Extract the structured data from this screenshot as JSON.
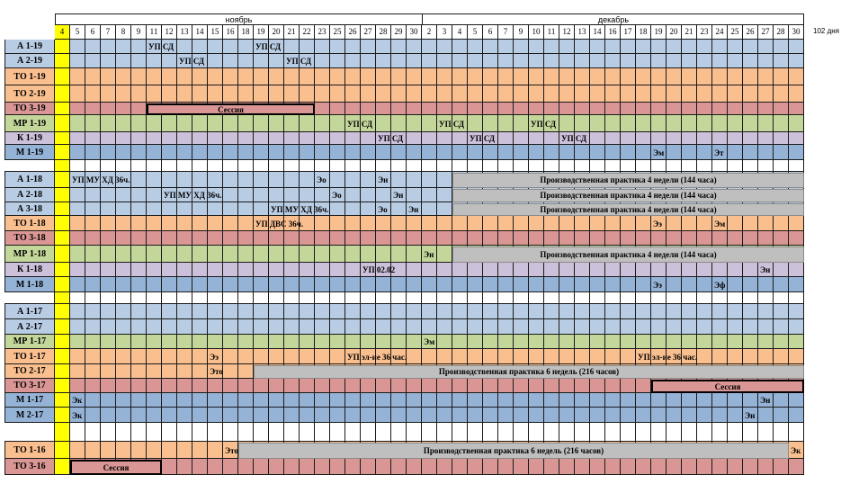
{
  "header": {
    "months": [
      {
        "name": "ноябрь"
      },
      {
        "name": "декабрь"
      }
    ],
    "days": [
      "4",
      "5",
      "6",
      "7",
      "8",
      "9",
      "11",
      "12",
      "13",
      "14",
      "15",
      "16",
      "18",
      "19",
      "20",
      "21",
      "22",
      "23",
      "25",
      "26",
      "27",
      "28",
      "29",
      "30",
      "2",
      "3",
      "4",
      "5",
      "6",
      "7",
      "9",
      "10",
      "11",
      "12",
      "13",
      "14",
      "16",
      "17",
      "18",
      "19",
      "20",
      "21",
      "23",
      "24",
      "25",
      "26",
      "27",
      "28",
      "30"
    ],
    "highlight_day_color": "#ffff00",
    "total_label": "102 дня"
  },
  "colors": {
    "blue_light": "#b8cce4",
    "orange": "#fabf8f",
    "red": "#da9694",
    "green": "#c4d79b",
    "purple": "#ccc0da",
    "blue_medium": "#95b3d7",
    "white": "#ffffff",
    "yellow": "#ffff00",
    "gray": "#bfbfbf"
  },
  "rows": [
    {
      "group": "А 1-19",
      "color": "blue_light"
    },
    {
      "group": "А 2-19",
      "color": "blue_light"
    },
    {
      "group": "ТО 1-19",
      "color": "orange"
    },
    {
      "group": "ТО 2-19",
      "color": "orange"
    },
    {
      "group": "ТО 3-19",
      "color": "red"
    },
    {
      "group": "МР 1-19",
      "color": "green"
    },
    {
      "group": "К 1-19",
      "color": "purple"
    },
    {
      "group": "М 1-19",
      "color": "blue_medium"
    },
    {
      "group": "",
      "color": "white"
    },
    {
      "group": "А 1-18",
      "color": "blue_light"
    },
    {
      "group": "А 2-18",
      "color": "blue_light"
    },
    {
      "group": "А 3-18",
      "color": "blue_light"
    },
    {
      "group": "ТО 1-18",
      "color": "orange"
    },
    {
      "group": "ТО 3-18",
      "color": "red"
    },
    {
      "group": "МР 1-18",
      "color": "green"
    },
    {
      "group": "К 1-18",
      "color": "purple"
    },
    {
      "group": "М 1-18",
      "color": "blue_medium"
    },
    {
      "group": "",
      "color": "white"
    },
    {
      "group": "А 1-17",
      "color": "blue_light"
    },
    {
      "group": "А 2-17",
      "color": "blue_light"
    },
    {
      "group": "МР 1-17",
      "color": "green"
    },
    {
      "group": "ТО 1-17",
      "color": "orange"
    },
    {
      "group": "ТО 2-17",
      "color": "orange"
    },
    {
      "group": "ТО 3-17",
      "color": "red"
    },
    {
      "group": "М 1-17",
      "color": "blue_medium"
    },
    {
      "group": "М 2-17",
      "color": "blue_medium"
    },
    {
      "group": "",
      "color": "white"
    },
    {
      "group": "ТО 1-16",
      "color": "orange"
    },
    {
      "group": "ТО 3-16",
      "color": "red"
    }
  ],
  "labels": [
    {
      "row": 0,
      "col": 6,
      "text": "УП СД"
    },
    {
      "row": 0,
      "col": 13,
      "text": "УП СД"
    },
    {
      "row": 1,
      "col": 8,
      "text": "УП СД"
    },
    {
      "row": 1,
      "col": 15,
      "text": "УП СД"
    },
    {
      "row": 5,
      "col": 19,
      "text": "УП СД"
    },
    {
      "row": 5,
      "col": 25,
      "text": "УП СД"
    },
    {
      "row": 5,
      "col": 31,
      "text": "УП СД"
    },
    {
      "row": 6,
      "col": 21,
      "text": "УП СД"
    },
    {
      "row": 6,
      "col": 27,
      "text": "УП СД"
    },
    {
      "row": 6,
      "col": 33,
      "text": "УП СД"
    },
    {
      "row": 7,
      "col": 39,
      "text": "Эм"
    },
    {
      "row": 7,
      "col": 43,
      "text": "Эт"
    },
    {
      "row": 9,
      "col": 1,
      "text": "УП МУ ХД 36ч."
    },
    {
      "row": 9,
      "col": 17,
      "text": "Эо"
    },
    {
      "row": 9,
      "col": 21,
      "text": "Эн"
    },
    {
      "row": 10,
      "col": 7,
      "text": "УП МУ ХД 36ч."
    },
    {
      "row": 10,
      "col": 18,
      "text": "Эо"
    },
    {
      "row": 10,
      "col": 22,
      "text": "Эн"
    },
    {
      "row": 11,
      "col": 14,
      "text": "УП МУ ХД 36ч."
    },
    {
      "row": 11,
      "col": 21,
      "text": "Эо"
    },
    {
      "row": 11,
      "col": 23,
      "text": "Эн"
    },
    {
      "row": 12,
      "col": 13,
      "text": "УП ДВС 36ч."
    },
    {
      "row": 12,
      "col": 39,
      "text": "Ээ"
    },
    {
      "row": 12,
      "col": 43,
      "text": "Эм"
    },
    {
      "row": 14,
      "col": 24,
      "text": "Эн"
    },
    {
      "row": 15,
      "col": 20,
      "text": "УП 02.02"
    },
    {
      "row": 15,
      "col": 46,
      "text": "Эн"
    },
    {
      "row": 16,
      "col": 39,
      "text": "Ээ"
    },
    {
      "row": 16,
      "col": 43,
      "text": "Эф"
    },
    {
      "row": 20,
      "col": 24,
      "text": "Эм"
    },
    {
      "row": 21,
      "col": 10,
      "text": "Ээ"
    },
    {
      "row": 21,
      "col": 19,
      "text": "УП эл-ие 36 час."
    },
    {
      "row": 21,
      "col": 38,
      "text": "УП эл-ие 36 час."
    },
    {
      "row": 22,
      "col": 10,
      "text": "Это"
    },
    {
      "row": 24,
      "col": 1,
      "text": "Эк"
    },
    {
      "row": 24,
      "col": 46,
      "text": "Эн"
    },
    {
      "row": 25,
      "col": 1,
      "text": "Эк"
    },
    {
      "row": 25,
      "col": 45,
      "text": "Эн"
    },
    {
      "row": 27,
      "col": 11,
      "text": "Это"
    },
    {
      "row": 27,
      "col": 48,
      "text": "Эк"
    }
  ],
  "bars": [
    {
      "row": 4,
      "col_start": 6,
      "col_end": 16,
      "text": "Сессия",
      "type": "session"
    },
    {
      "row": 9,
      "col_start": 26,
      "col_end": 48,
      "text": "Производственная практика 4 недели (144 часа)",
      "type": "gray"
    },
    {
      "row": 10,
      "col_start": 26,
      "col_end": 48,
      "text": "Производственная практика 4 недели (144 часа)",
      "type": "gray"
    },
    {
      "row": 11,
      "col_start": 26,
      "col_end": 48,
      "text": "Производственная практика 4 недели (144 часа)",
      "type": "gray"
    },
    {
      "row": 14,
      "col_start": 26,
      "col_end": 48,
      "text": "Производственная практика 4 недели (144 часа)",
      "type": "gray"
    },
    {
      "row": 22,
      "col_start": 13,
      "col_end": 48,
      "text": "Производственная практика 6 недель (216 часов)",
      "type": "gray"
    },
    {
      "row": 23,
      "col_start": 39,
      "col_end": 48,
      "text": "Сессия",
      "type": "session"
    },
    {
      "row": 27,
      "col_start": 12,
      "col_end": 47,
      "text": "Производственная практика 6 недель (216 часов)",
      "type": "gray"
    },
    {
      "row": 28,
      "col_start": 1,
      "col_end": 6,
      "text": "Сессия",
      "type": "session"
    }
  ]
}
